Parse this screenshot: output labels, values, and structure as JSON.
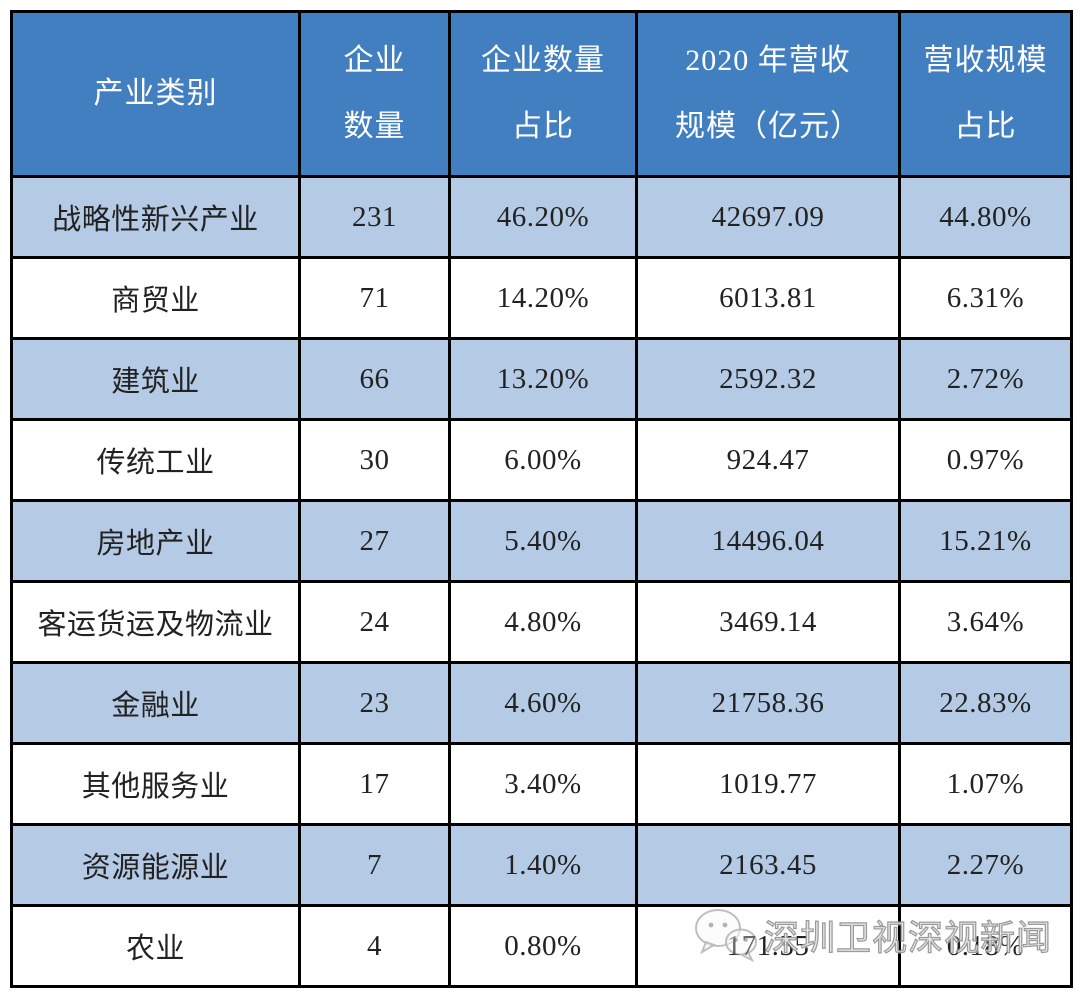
{
  "colors": {
    "header_bg": "#417FC1",
    "header_text": "#FFFFFF",
    "row_bg": "#FFFFFF",
    "row_alt_bg": "#B5CBE5",
    "border": "#000000",
    "body_text": "#222222",
    "watermark_gray": "#8A8A8A"
  },
  "watermark": {
    "text": "深圳卫视深视新闻",
    "icon": "wechat-chat-bubbles-icon"
  },
  "chart_data": {
    "type": "table",
    "columns": [
      {
        "key": "industry",
        "label": "产业类别",
        "label_lines": [
          "产业类别"
        ]
      },
      {
        "key": "company-count",
        "label": "企业数量",
        "label_lines": [
          "企业",
          "数量"
        ]
      },
      {
        "key": "company-count-share",
        "label": "企业数量占比",
        "label_lines": [
          "企业数量",
          "占比"
        ]
      },
      {
        "key": "revenue-2020",
        "label": "2020年营收规模（亿元）",
        "label_lines": [
          "2020 年营收",
          "规模（亿元）"
        ]
      },
      {
        "key": "revenue-share",
        "label": "营收规模占比",
        "label_lines": [
          "营收规模",
          "占比"
        ]
      }
    ],
    "rows": [
      [
        "战略性新兴产业",
        "231",
        "46.20%",
        "42697.09",
        "44.80%"
      ],
      [
        "商贸业",
        "71",
        "14.20%",
        "6013.81",
        "6.31%"
      ],
      [
        "建筑业",
        "66",
        "13.20%",
        "2592.32",
        "2.72%"
      ],
      [
        "传统工业",
        "30",
        "6.00%",
        "924.47",
        "0.97%"
      ],
      [
        "房地产业",
        "27",
        "5.40%",
        "14496.04",
        "15.21%"
      ],
      [
        "客运货运及物流业",
        "24",
        "4.80%",
        "3469.14",
        "3.64%"
      ],
      [
        "金融业",
        "23",
        "4.60%",
        "21758.36",
        "22.83%"
      ],
      [
        "其他服务业",
        "17",
        "3.40%",
        "1019.77",
        "1.07%"
      ],
      [
        "资源能源业",
        "7",
        "1.40%",
        "2163.45",
        "2.27%"
      ],
      [
        "农业",
        "4",
        "0.80%",
        "171.55",
        "0.18%"
      ]
    ]
  }
}
